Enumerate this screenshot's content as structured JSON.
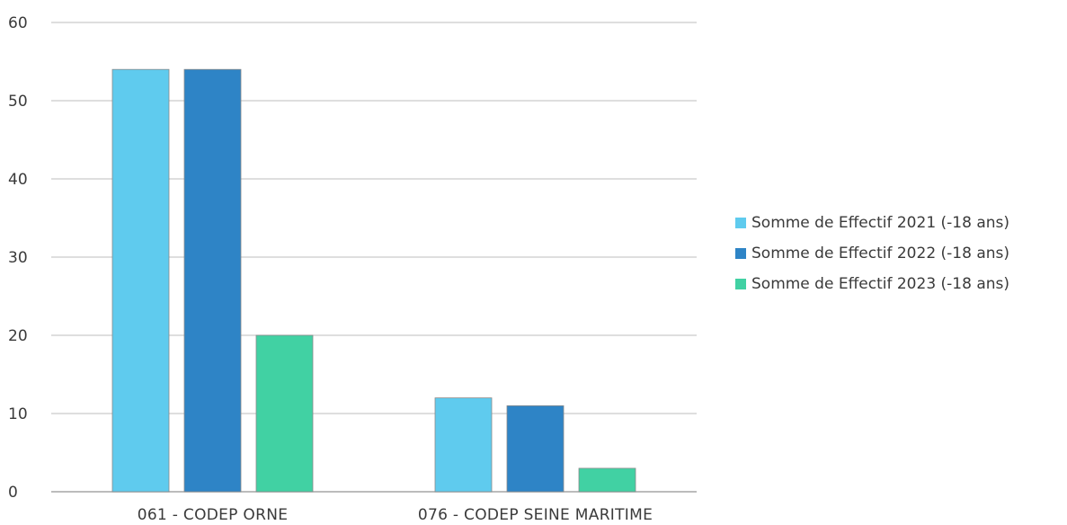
{
  "chart_data": {
    "type": "bar",
    "title": "",
    "xlabel": "",
    "ylabel": "",
    "categories": [
      "061 - CODEP ORNE",
      "076 - CODEP SEINE MARITIME"
    ],
    "series": [
      {
        "name": "Somme de Effectif 2021 (-18 ans)",
        "values": [
          54,
          12
        ],
        "color": "#5fcbee"
      },
      {
        "name": "Somme de Effectif 2022 (-18 ans)",
        "values": [
          54,
          11
        ],
        "color": "#2e84c6"
      },
      {
        "name": "Somme de Effectif 2023 (-18 ans)",
        "values": [
          20,
          3
        ],
        "color": "#41d1a3"
      }
    ],
    "ylim": [
      0,
      60
    ],
    "yticks": [
      0,
      10,
      20,
      30,
      40,
      50,
      60
    ],
    "grid": true,
    "legend_position": "right"
  },
  "colors": {
    "grid": "#c9c9c9",
    "axis": "#a6a6a6",
    "bar_border": "#8a8a8a"
  }
}
